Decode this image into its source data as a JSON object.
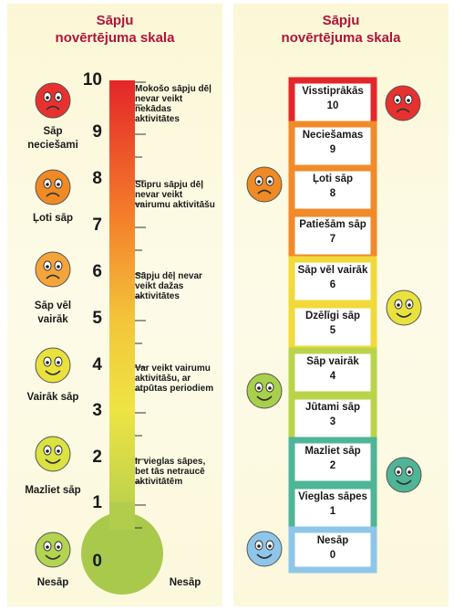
{
  "left": {
    "title": [
      "Sāpju",
      "novērtējuma skala"
    ],
    "scale": [
      10,
      9,
      8,
      7,
      6,
      5,
      4,
      3,
      2,
      1,
      0
    ],
    "faces": [
      "Sāp neciešami",
      "Ļoti sāp",
      "Sāp vēl vairāk",
      "Vairāk sāp",
      "Mazliet sāp",
      "Nesāp"
    ],
    "bulb_label": "Nesāp",
    "descriptions": [
      "Mokošo sāpju dēļ nevar veikt nekādas aktivitātes",
      "Stipru sāpju dēļ nevar veikt vairumu aktivitāšu",
      "Sāpju dēļ nevar veikt dažas aktivitātes",
      "Var veikt vairumu aktivitāšu, ar atpūtas periodiem",
      "Ir vieglas sāpes, bet tās netraucē aktivitātēm"
    ]
  },
  "right": {
    "title": [
      "Sāpju",
      "novērtējuma skala"
    ],
    "rungs": [
      {
        "label": "Visstiprākās",
        "value": 10
      },
      {
        "label": "Neciešamas",
        "value": 9
      },
      {
        "label": "Ļoti sāp",
        "value": 8
      },
      {
        "label": "Patiešām sāp",
        "value": 7
      },
      {
        "label": "Sāp vēl vairāk",
        "value": 6
      },
      {
        "label": "Dzēlīgi sāp",
        "value": 5
      },
      {
        "label": "Sāp vairāk",
        "value": 4
      },
      {
        "label": "Jūtami sāp",
        "value": 3
      },
      {
        "label": "Mazliet sāp",
        "value": 2
      },
      {
        "label": "Vieglas sāpes",
        "value": 1
      },
      {
        "label": "Nesāp",
        "value": 0
      }
    ]
  }
}
